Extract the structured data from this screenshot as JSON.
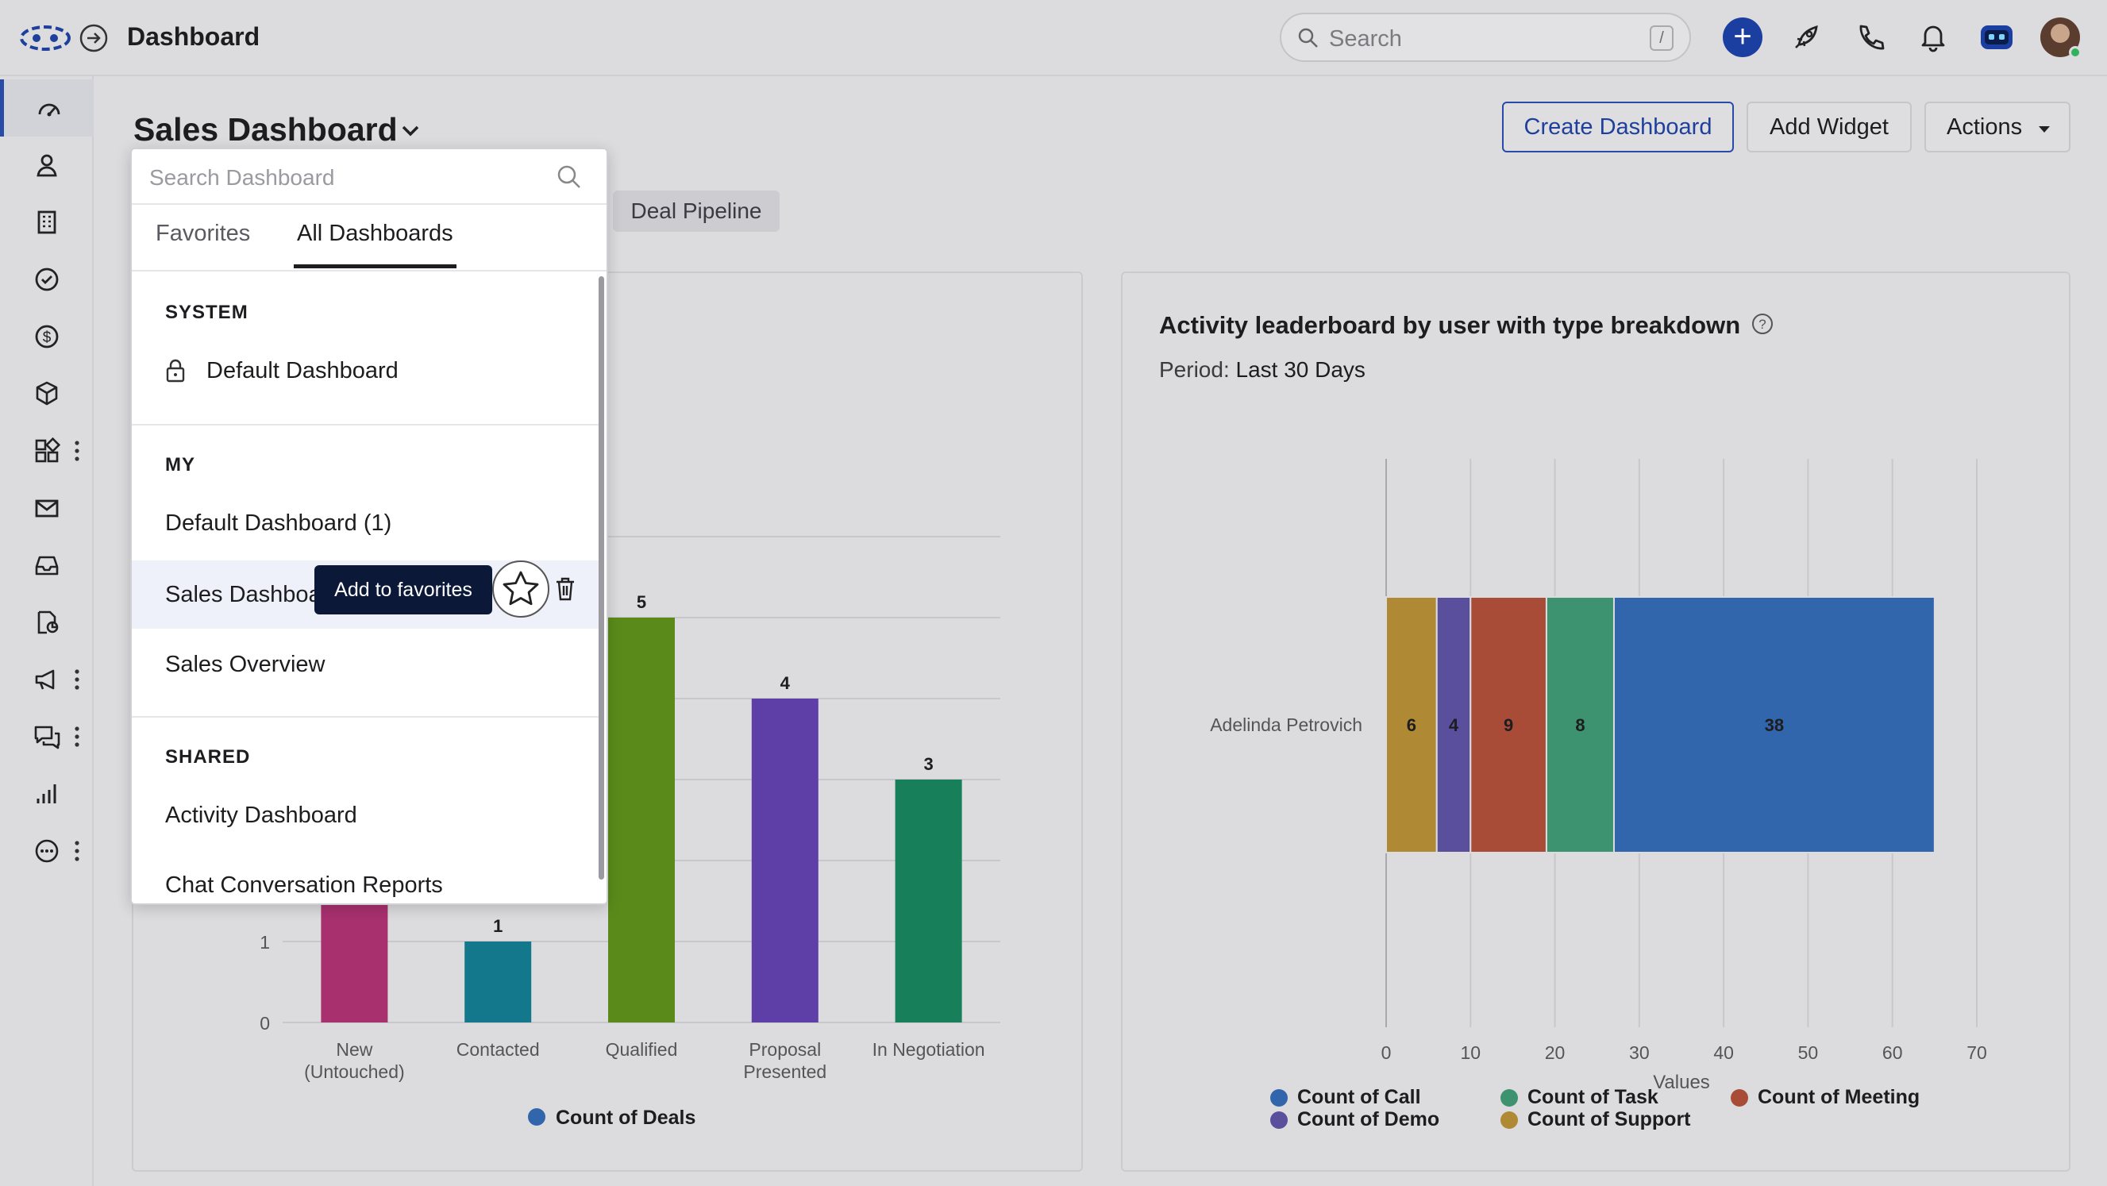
{
  "topbar": {
    "title": "Dashboard",
    "search_placeholder": "Search",
    "search_shortcut": "/",
    "plus_label": "+",
    "icons": [
      "logo-icon",
      "expand-icon",
      "rocket-icon",
      "phone-icon",
      "bell-icon",
      "assistant-icon",
      "avatar"
    ]
  },
  "sidebar": {
    "items": [
      "dashboard-icon",
      "contacts-icon",
      "accounts-icon",
      "tasks-icon",
      "deals-icon",
      "products-icon",
      "apps-icon",
      "mail-icon",
      "inbox-icon",
      "reports-icon",
      "campaigns-icon",
      "chat-icon",
      "analytics-icon",
      "more-icon"
    ]
  },
  "header": {
    "title": "Sales Dashboard",
    "create_label": "Create Dashboard",
    "add_widget_label": "Add Widget",
    "actions_label": "Actions",
    "tab_chip": "Deal Pipeline"
  },
  "dropdown": {
    "search_placeholder": "Search Dashboard",
    "tabs": [
      "Favorites",
      "All Dashboards"
    ],
    "active_tab": "All Dashboards",
    "system_heading": "SYSTEM",
    "system_items": [
      "Default Dashboard"
    ],
    "my_heading": "MY",
    "my_items": [
      "Default Dashboard (1)",
      "Sales Dashboa",
      "Sales Overview"
    ],
    "shared_heading": "SHARED",
    "shared_items": [
      "Activity Dashboard",
      "Chat Conversation Reports"
    ],
    "tooltip": "Add to favorites"
  },
  "leaderboard": {
    "title": "Activity leaderboard by user with type breakdown",
    "period_label": "Period:",
    "period_value": "Last 30 Days"
  },
  "chart_data": [
    {
      "type": "bar",
      "categories": [
        "New (Untouched)",
        "Contacted",
        "Qualified",
        "Proposal Presented",
        "In Negotiation"
      ],
      "values": [
        2,
        1,
        5,
        4,
        3
      ],
      "visible_y_ticks": [
        0,
        1
      ],
      "ylim": [
        0,
        6
      ],
      "series": [
        {
          "name": "Count of Deals",
          "values": [
            2,
            1,
            5,
            4,
            3
          ]
        }
      ],
      "colors": [
        "#a8306f",
        "#14788d",
        "#5a8b1a",
        "#5d3fa7",
        "#177f5a"
      ],
      "legend": "bottom",
      "grid": true
    },
    {
      "type": "bar",
      "orientation": "horizontal",
      "stacked": true,
      "categories": [
        "Adelinda Petrovich"
      ],
      "series": [
        {
          "name": "Count of Support",
          "values": [
            6
          ],
          "color": "#b08934"
        },
        {
          "name": "Count of Demo",
          "values": [
            4
          ],
          "color": "#5a4f9c"
        },
        {
          "name": "Count of Meeting",
          "values": [
            9
          ],
          "color": "#a84c38"
        },
        {
          "name": "Count of Task",
          "values": [
            8
          ],
          "color": "#3d9370"
        },
        {
          "name": "Count of Call",
          "values": [
            38
          ],
          "color": "#3266ac"
        }
      ],
      "x_ticks": [
        0,
        10,
        20,
        30,
        40,
        50,
        60,
        70
      ],
      "xlim": [
        0,
        70
      ],
      "xlabel": "Values",
      "legend_entries": [
        "Count of Call",
        "Count of Task",
        "Count of Meeting",
        "Count of Demo",
        "Count of Support"
      ],
      "legend": "bottom",
      "grid": true
    }
  ]
}
